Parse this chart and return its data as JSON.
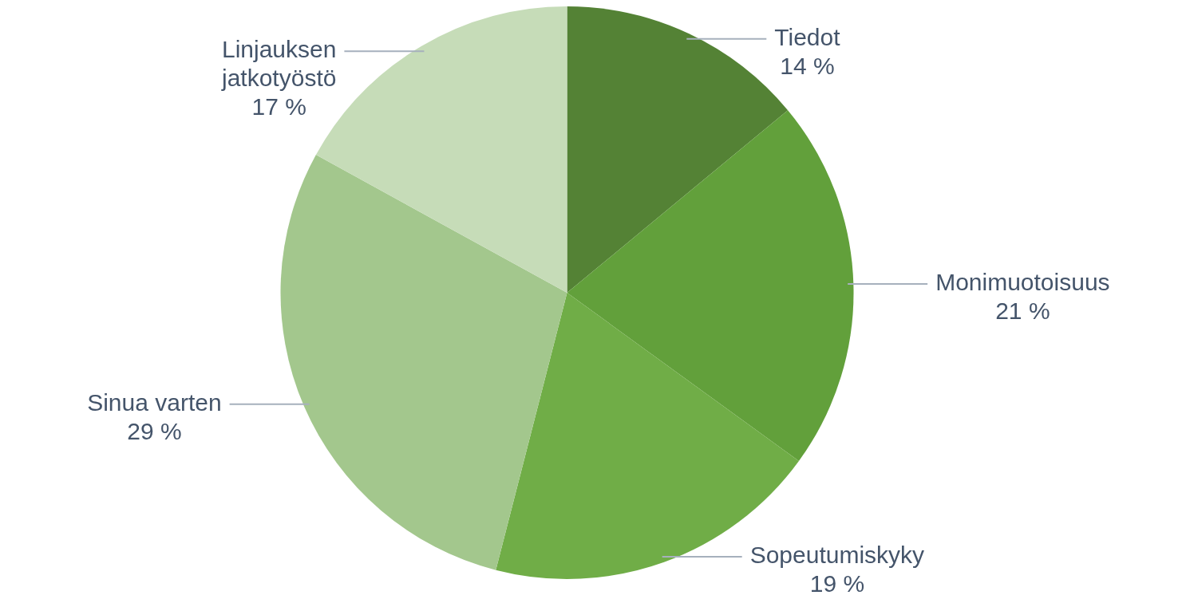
{
  "chart_data": {
    "type": "pie",
    "categories": [
      "Tiedot",
      "Monimuotoisuus",
      "Sopeutumiskyky",
      "Sinua varten",
      "Linjauksen jatkotyöstö"
    ],
    "values": [
      14,
      21,
      19,
      29,
      17
    ],
    "value_labels": [
      "14 %",
      "21 %",
      "19 %",
      "29 %",
      "17 %"
    ],
    "colors": [
      "#548235",
      "#62a03b",
      "#70ad47",
      "#a3c78d",
      "#c6dcb8"
    ],
    "legend": false
  }
}
